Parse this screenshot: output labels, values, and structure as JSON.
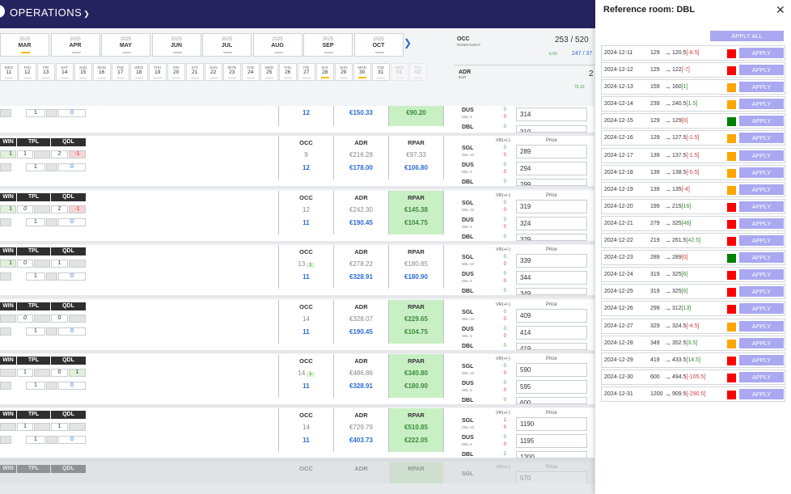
{
  "header": {
    "title": "OPERATIONS",
    "chevron_icon": "chevron-down-icon"
  },
  "months": [
    {
      "year": "2025",
      "name": "MAR",
      "active": true
    },
    {
      "year": "2025",
      "name": "APR",
      "active": false
    },
    {
      "year": "2025",
      "name": "MAY",
      "active": false
    },
    {
      "year": "2025",
      "name": "JUN",
      "active": false
    },
    {
      "year": "2025",
      "name": "JUL",
      "active": false
    },
    {
      "year": "2025",
      "name": "AUG",
      "active": false
    },
    {
      "year": "2025",
      "name": "SEP",
      "active": false
    },
    {
      "year": "2025",
      "name": "OCT",
      "active": false
    }
  ],
  "next_icon": "chevron-right-icon",
  "days": [
    {
      "dw": "WED",
      "dn": "11"
    },
    {
      "dw": "THU",
      "dn": "12"
    },
    {
      "dw": "FRI",
      "dn": "13"
    },
    {
      "dw": "SAT",
      "dn": "14"
    },
    {
      "dw": "SUN",
      "dn": "15"
    },
    {
      "dw": "MON",
      "dn": "16"
    },
    {
      "dw": "TUE",
      "dn": "17"
    },
    {
      "dw": "WED",
      "dn": "18"
    },
    {
      "dw": "THU",
      "dn": "19"
    },
    {
      "dw": "FRI",
      "dn": "20"
    },
    {
      "dw": "SAT",
      "dn": "21"
    },
    {
      "dw": "SUN",
      "dn": "22"
    },
    {
      "dw": "MON",
      "dn": "23"
    },
    {
      "dw": "TUE",
      "dn": "24"
    },
    {
      "dw": "WED",
      "dn": "25"
    },
    {
      "dw": "THU",
      "dn": "26"
    },
    {
      "dw": "FRI",
      "dn": "27"
    },
    {
      "dw": "SAT",
      "dn": "28",
      "yellow": true
    },
    {
      "dw": "SUN",
      "dn": "29"
    },
    {
      "dw": "MON",
      "dn": "30",
      "yellow": true
    },
    {
      "dw": "TUE",
      "dn": "31"
    },
    {
      "dw": "WED",
      "dn": "01",
      "dim": true
    },
    {
      "dw": "THU",
      "dn": "02",
      "dim": true
    }
  ],
  "summary": {
    "occ_label": "OCC",
    "occ_sub": "ROOM NIGHT",
    "occ_value": "253 / 520",
    "occ_small": "6.00",
    "occ_blue": "247 / 37",
    "adr_label": "ADR",
    "adr_sub": "EUR",
    "adr_small": "76.10",
    "adr_value": "2"
  },
  "col_headers": {
    "win": "WIN",
    "tpl": "TPL",
    "qdl": "QDL",
    "occ": "OCC",
    "adr": "ADR",
    "rpar": "RPAR",
    "vr": "VR(+/-)",
    "price": "Price"
  },
  "room_types": {
    "sgl": "SGL",
    "dus": "DUS",
    "dbl": "DBL",
    "dbl10": "DBL-10",
    "dbl5": "DBL-5"
  },
  "top_partial": {
    "r2": [
      "1",
      "0"
    ],
    "occ": "12",
    "adr": "€150.33",
    "rpar": "€90.20",
    "vr": [
      {
        "v": "0",
        "c": "g"
      },
      {
        "v": "0",
        "c": "r"
      },
      {
        "v": "0",
        "c": "g"
      },
      {
        "v": "0",
        "c": "r"
      },
      {
        "v": "0",
        "c": "g"
      }
    ],
    "prices": [
      "314",
      "319"
    ]
  },
  "blocks": [
    {
      "r1": {
        "tpl": "1",
        "tpl_italic": false,
        "qdl": "2",
        "qdl_extra": "-1",
        "qdl_extra_kind": "pink",
        "win_green": true
      },
      "r2": [
        "1",
        "0"
      ],
      "occ_gray": "9",
      "occ_badge": "",
      "occ_blue": "12",
      "adr_gray": "€216.28",
      "adr_blue": "€178.00",
      "rpar_gray": "€97.33",
      "rpar_blue": "€106.80",
      "rpar_green_bg": false,
      "vr": [
        {
          "v": "0",
          "c": "g"
        },
        {
          "v": "0",
          "c": "r"
        },
        {
          "v": "0",
          "c": "g"
        },
        {
          "v": "0",
          "c": "r"
        },
        {
          "v": "0",
          "c": "g"
        }
      ],
      "prices": [
        "289",
        "294",
        "299"
      ]
    },
    {
      "r1": {
        "tpl": "0",
        "tpl_italic": true,
        "qdl": "2",
        "qdl_extra": "-1",
        "qdl_extra_kind": "pink",
        "win_green": true
      },
      "r2": [
        "1",
        "0"
      ],
      "occ_gray": "12",
      "occ_badge": "",
      "occ_blue": "11",
      "adr_gray": "€242.30",
      "adr_blue": "€190.45",
      "rpar_gray": "€145.38",
      "rpar_blue": "€104.75",
      "rpar_green_bg": true,
      "vr": [
        {
          "v": "0",
          "c": "g"
        },
        {
          "v": "0",
          "c": "r"
        },
        {
          "v": "0",
          "c": "g"
        },
        {
          "v": "0",
          "c": "r"
        },
        {
          "v": "0",
          "c": "g"
        }
      ],
      "prices": [
        "319",
        "324",
        "329"
      ]
    },
    {
      "r1": {
        "tpl": "0",
        "tpl_italic": true,
        "qdl": "1",
        "qdl_extra": "",
        "qdl_extra_kind": "gray",
        "win_green": true
      },
      "r2": [
        "1",
        "0"
      ],
      "occ_gray": "13",
      "occ_badge": "1",
      "occ_blue": "11",
      "adr_gray": "€278.22",
      "adr_blue": "€328.91",
      "rpar_gray": "€180.85",
      "rpar_blue": "€180.90",
      "rpar_green_bg": false,
      "vr": [
        {
          "v": "0",
          "c": "g"
        },
        {
          "v": "0",
          "c": "r"
        },
        {
          "v": "0",
          "c": "g"
        },
        {
          "v": "0",
          "c": "r"
        },
        {
          "v": "0",
          "c": "g"
        }
      ],
      "prices": [
        "339",
        "344",
        "349"
      ]
    },
    {
      "r1": {
        "tpl": "0",
        "tpl_italic": true,
        "qdl": "0",
        "qdl_extra": "",
        "qdl_extra_kind": "gray",
        "win_green": false
      },
      "r2": [
        "1",
        "0"
      ],
      "occ_gray": "14",
      "occ_badge": "",
      "occ_blue": "11",
      "adr_gray": "€328.07",
      "adr_blue": "€190.45",
      "rpar_gray": "€229.65",
      "rpar_blue": "€104.75",
      "rpar_green_bg": true,
      "vr": [
        {
          "v": "0",
          "c": "g"
        },
        {
          "v": "0",
          "c": "r"
        },
        {
          "v": "0",
          "c": "g"
        },
        {
          "v": "0",
          "c": "r"
        },
        {
          "v": "0",
          "c": "g"
        }
      ],
      "prices": [
        "409",
        "414",
        "419"
      ]
    },
    {
      "r1": {
        "tpl": "1",
        "tpl_italic": false,
        "qdl": "0",
        "qdl_extra": "1",
        "qdl_extra_kind": "green",
        "win_green": false
      },
      "r2": [
        "1",
        "0"
      ],
      "occ_gray": "14",
      "occ_badge": "1",
      "occ_blue": "11",
      "adr_gray": "€486.86",
      "adr_blue": "€328.91",
      "rpar_gray": "€340.80",
      "rpar_blue": "€180.90",
      "rpar_green_bg": true,
      "vr": [
        {
          "v": "0",
          "c": "g"
        },
        {
          "v": "0",
          "c": "r"
        },
        {
          "v": "0",
          "c": "g"
        },
        {
          "v": "0",
          "c": "r"
        },
        {
          "v": "0",
          "c": "g"
        }
      ],
      "prices": [
        "590",
        "595",
        "600"
      ]
    },
    {
      "r1": {
        "tpl": "1",
        "tpl_italic": false,
        "qdl": "1",
        "qdl_extra": "",
        "qdl_extra_kind": "gray",
        "win_green": false
      },
      "r2": [
        "1",
        "0"
      ],
      "occ_gray": "14",
      "occ_badge": "",
      "occ_blue": "11",
      "adr_gray": "€729.79",
      "adr_blue": "€403.73",
      "rpar_gray": "€510.85",
      "rpar_blue": "€222.05",
      "rpar_green_bg": true,
      "vr": [
        {
          "v": "1",
          "c": "r"
        },
        {
          "v": "0",
          "c": "r"
        },
        {
          "v": "0",
          "c": "g"
        },
        {
          "v": "0",
          "c": "r"
        },
        {
          "v": "2",
          "c": "g"
        }
      ],
      "prices": [
        "1190",
        "1195",
        "1200"
      ]
    }
  ],
  "bottom_partial": {
    "price": "570"
  },
  "panel": {
    "title": "Reference room: DBL",
    "close_icon": "close-icon",
    "apply_all": "APPLY ALL",
    "apply_label": "APPLY",
    "rows": [
      {
        "date": "2024-12-11",
        "old": "129",
        "new": "120.5",
        "delta": "[-8.5]",
        "sign": "neg",
        "color": "#ff0000"
      },
      {
        "date": "2024-12-12",
        "old": "129",
        "new": "122",
        "delta": "[-7]",
        "sign": "neg",
        "color": "#ff0000"
      },
      {
        "date": "2024-12-13",
        "old": "159",
        "new": "160",
        "delta": "[1]",
        "sign": "pos",
        "color": "#ffa500"
      },
      {
        "date": "2024-12-14",
        "old": "239",
        "new": "240.5",
        "delta": "[1.5]",
        "sign": "pos",
        "color": "#ffa500"
      },
      {
        "date": "2024-12-15",
        "old": "129",
        "new": "129",
        "delta": "[0]",
        "sign": "neg",
        "color": "#008000"
      },
      {
        "date": "2024-12-16",
        "old": "129",
        "new": "127.5",
        "delta": "[-1.5]",
        "sign": "neg",
        "color": "#ffa500"
      },
      {
        "date": "2024-12-17",
        "old": "139",
        "new": "137.5",
        "delta": "[-1.5]",
        "sign": "neg",
        "color": "#ffa500"
      },
      {
        "date": "2024-12-18",
        "old": "139",
        "new": "138.5",
        "delta": "[-0.5]",
        "sign": "neg",
        "color": "#ffa500"
      },
      {
        "date": "2024-12-19",
        "old": "139",
        "new": "135",
        "delta": "[-4]",
        "sign": "neg",
        "color": "#ffa500"
      },
      {
        "date": "2024-12-20",
        "old": "199",
        "new": "215",
        "delta": "[16]",
        "sign": "pos",
        "color": "#ff0000"
      },
      {
        "date": "2024-12-21",
        "old": "279",
        "new": "325",
        "delta": "[46]",
        "sign": "pos",
        "color": "#ff0000"
      },
      {
        "date": "2024-12-22",
        "old": "219",
        "new": "261.5",
        "delta": "[42.5]",
        "sign": "pos",
        "color": "#ff0000"
      },
      {
        "date": "2024-12-23",
        "old": "289",
        "new": "289",
        "delta": "[0]",
        "sign": "neg",
        "color": "#008000"
      },
      {
        "date": "2024-12-24",
        "old": "319",
        "new": "325",
        "delta": "[6]",
        "sign": "pos",
        "color": "#ff0000"
      },
      {
        "date": "2024-12-25",
        "old": "319",
        "new": "325",
        "delta": "[6]",
        "sign": "pos",
        "color": "#ff0000"
      },
      {
        "date": "2024-12-26",
        "old": "299",
        "new": "312",
        "delta": "[13]",
        "sign": "pos",
        "color": "#ff0000"
      },
      {
        "date": "2024-12-27",
        "old": "329",
        "new": "324.5",
        "delta": "[-4.5]",
        "sign": "neg",
        "color": "#ffa500"
      },
      {
        "date": "2024-12-28",
        "old": "349",
        "new": "352.5",
        "delta": "[3.5]",
        "sign": "pos",
        "color": "#ffa500"
      },
      {
        "date": "2024-12-29",
        "old": "419",
        "new": "433.5",
        "delta": "[14.5]",
        "sign": "pos",
        "color": "#ff0000"
      },
      {
        "date": "2024-12-30",
        "old": "600",
        "new": "494.5",
        "delta": "[-105.5]",
        "sign": "neg",
        "color": "#ff0000"
      },
      {
        "date": "2024-12-31",
        "old": "1200",
        "new": "909.5",
        "delta": "[-290.5]",
        "sign": "neg",
        "color": "#ff0000"
      }
    ]
  }
}
